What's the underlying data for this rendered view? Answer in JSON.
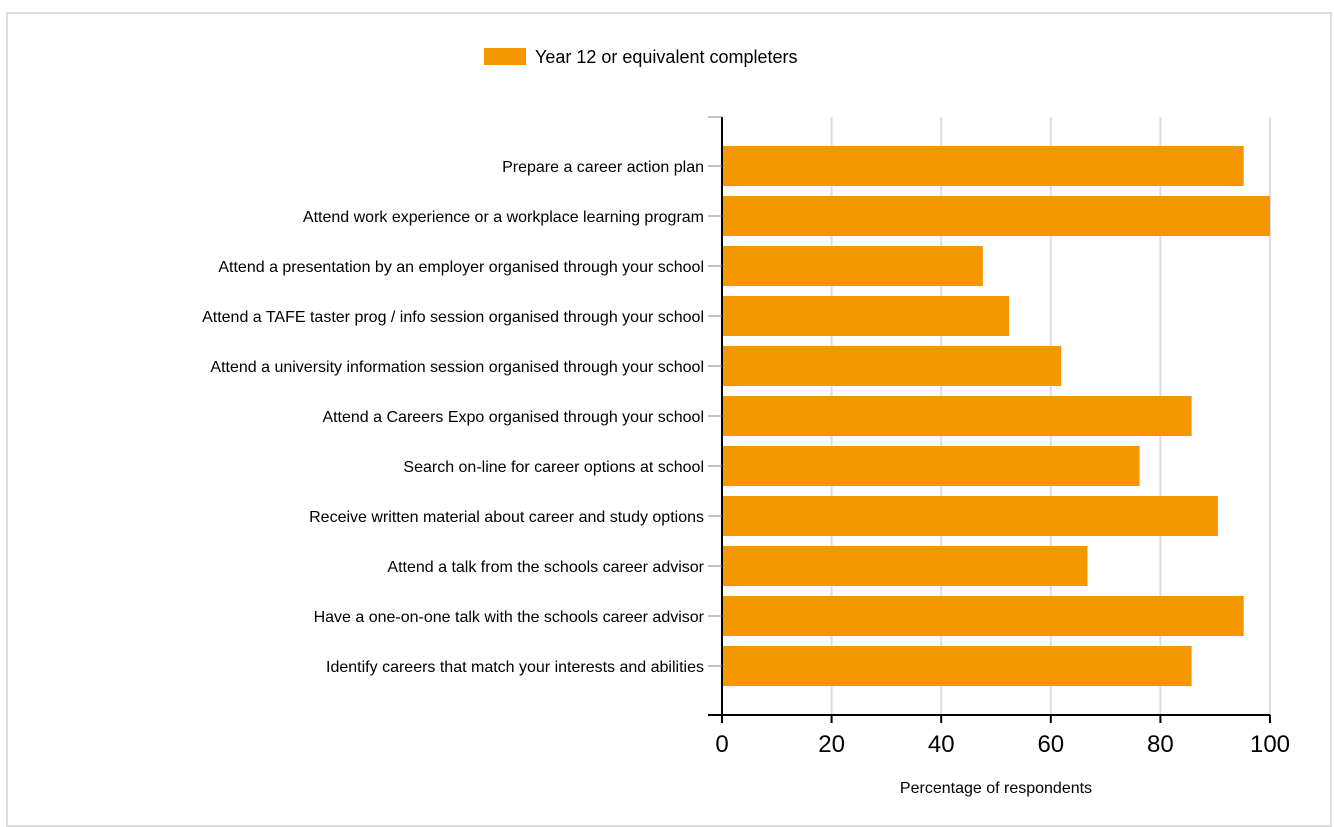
{
  "chart_data": {
    "type": "bar",
    "orientation": "horizontal",
    "categories": [
      "Prepare a career action plan",
      "Attend work experience or a workplace learning program",
      "Attend a presentation by an employer organised through your school",
      "Attend a TAFE taster prog / info session organised through your school",
      "Attend a university information session organised through your school",
      "Attend a Careers Expo organised through your school",
      "Search on-line for career options at school",
      "Receive written material about career and study options",
      "Attend a talk from the schools career advisor",
      "Have a one-on-one talk with the schools career advisor",
      "Identify careers that match your interests and abilities"
    ],
    "series": [
      {
        "name": "Year 12 or equivalent completers",
        "color": "#f59700",
        "values": [
          95.2,
          100,
          47.6,
          52.4,
          61.9,
          85.7,
          76.2,
          90.5,
          66.7,
          95.2,
          85.7
        ]
      }
    ],
    "xlabel": "Percentage of respondents",
    "ylabel": "",
    "xlim": [
      0,
      100
    ],
    "xticks": [
      "0",
      "20",
      "40",
      "60",
      "80",
      "100"
    ],
    "grid": true,
    "legend_position": "top-center"
  }
}
